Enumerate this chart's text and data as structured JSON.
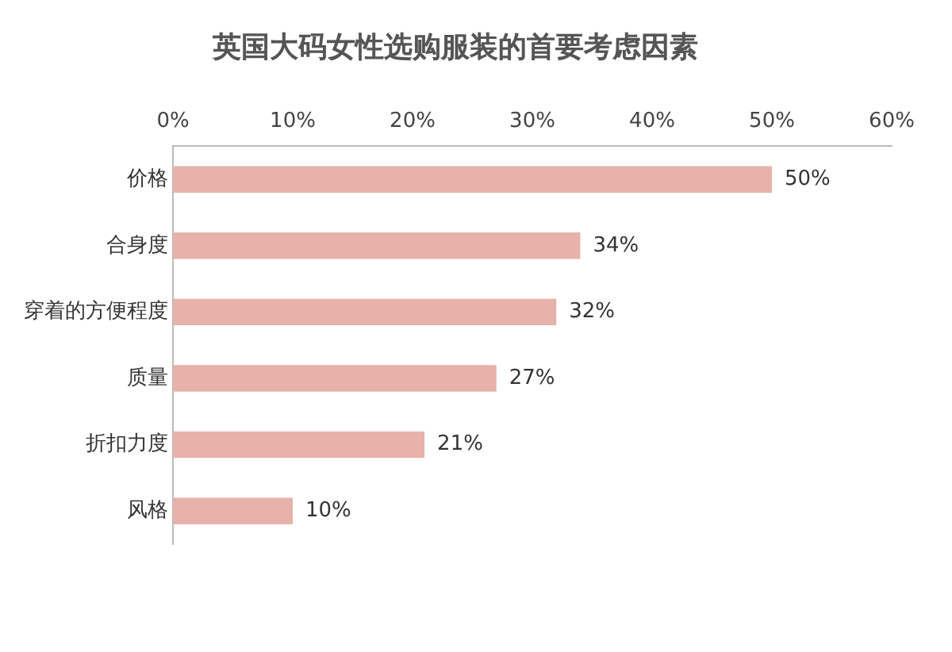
{
  "chart_data": {
    "type": "bar",
    "orientation": "horizontal",
    "title": "英国大码女性选购服装的首要考虑因素",
    "categories": [
      "价格",
      "合身度",
      "穿着的方便程度",
      "质量",
      "折扣力度",
      "风格"
    ],
    "values": [
      50,
      34,
      32,
      27,
      21,
      10
    ],
    "color": "#e6b2aa",
    "value_labels": [
      "50%",
      "34%",
      "32%",
      "27%",
      "21%",
      "10%"
    ],
    "xlim": [
      0,
      60
    ],
    "xticks": [
      {
        "value": 0,
        "label": "0%"
      },
      {
        "value": 10,
        "label": "10%"
      },
      {
        "value": 20,
        "label": "20%"
      },
      {
        "value": 30,
        "label": "30%"
      },
      {
        "value": 40,
        "label": "40%"
      },
      {
        "value": 50,
        "label": "50%"
      },
      {
        "value": 60,
        "label": "60%"
      }
    ],
    "grid": false,
    "legend": false
  }
}
